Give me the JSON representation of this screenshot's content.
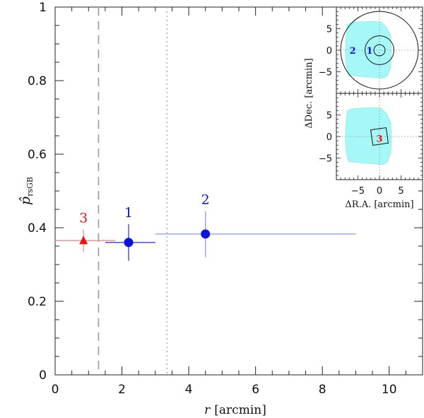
{
  "chart_data": {
    "type": "scatter",
    "xlabel_var": "r",
    "xlabel_unit": "[arcmin]",
    "ylabel_main": "p̂",
    "ylabel_sub": "rsGB",
    "xlim": [
      0,
      11
    ],
    "ylim": [
      0,
      1
    ],
    "x_ticks": [
      "0",
      "2",
      "4",
      "6",
      "8",
      "10"
    ],
    "y_ticks": [
      "0",
      "0.2",
      "0.4",
      "0.6",
      "0.8",
      "1"
    ],
    "vlines": [
      {
        "x": 1.3,
        "style": "dashed"
      },
      {
        "x": 3.35,
        "style": "dotted"
      }
    ],
    "points": [
      {
        "label": "3",
        "marker": "triangle",
        "color": "#ee1111",
        "bar_color": "#f08a8a",
        "x": 0.85,
        "x_lo": 0.0,
        "x_hi": 1.8,
        "y": 0.365,
        "y_lo": 0.335,
        "y_hi": 0.395
      },
      {
        "label": "1",
        "marker": "circle",
        "color": "#0a12e0",
        "bar_color": "#3a3ae0",
        "x": 2.2,
        "x_lo": 1.5,
        "x_hi": 3.0,
        "y": 0.36,
        "y_lo": 0.31,
        "y_hi": 0.41
      },
      {
        "label": "2",
        "marker": "circle",
        "color": "#0a12e0",
        "bar_color": "#8f93ec",
        "x": 4.5,
        "x_lo": 3.0,
        "x_hi": 9.0,
        "y": 0.383,
        "y_lo": 0.32,
        "y_hi": 0.445
      }
    ],
    "insets": {
      "xlabel": "ΔR.A. [arcmin]",
      "ylabel": "ΔDec. [arcmin]",
      "lim": [
        -10,
        10
      ],
      "x_ticks": [
        "−5",
        "0",
        "5"
      ],
      "y_ticks": [
        "5",
        "0",
        "−5"
      ],
      "field_color": "#a6f7f7",
      "top": {
        "circle_radii": [
          1.3,
          3.35,
          9.0
        ],
        "labels": [
          {
            "text": "2",
            "color": "#0a12e0",
            "x": -6.2,
            "y": 0.0
          },
          {
            "text": "1",
            "color": "#0a12e0",
            "x": -2.3,
            "y": 0.0
          }
        ]
      },
      "bottom": {
        "square_half_size": 1.8,
        "labels": [
          {
            "text": "3",
            "color": "#ee1111",
            "x": 0.0,
            "y": -0.4
          }
        ]
      }
    }
  }
}
